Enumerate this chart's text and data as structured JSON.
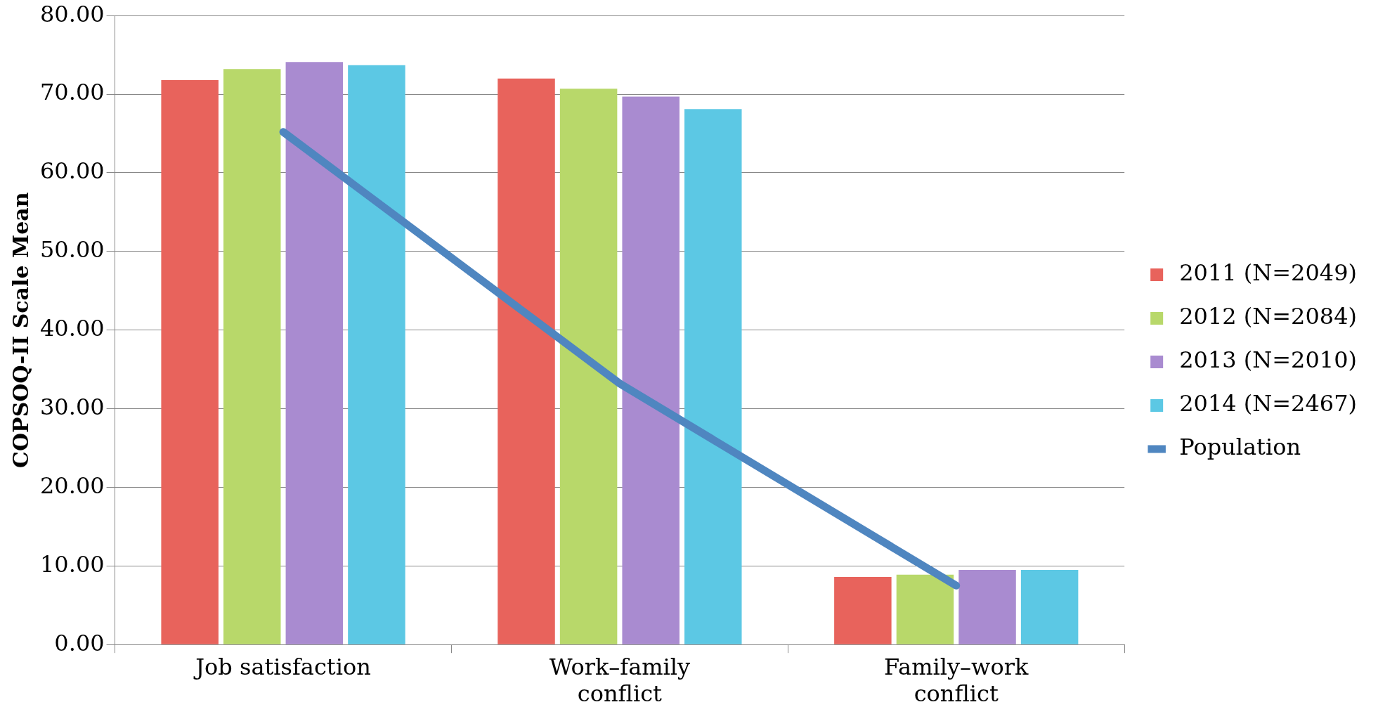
{
  "chart_data": {
    "type": "bar",
    "ylabel": "COPSOQ-II Scale Mean",
    "categories": [
      "Job satisfaction",
      "Work–family conflict",
      "Family–work conflict"
    ],
    "series": [
      {
        "name": "2011 (N=2049)",
        "color": "#e8635c",
        "values": [
          71.8,
          72.0,
          8.6
        ]
      },
      {
        "name": "2012 (N=2084)",
        "color": "#b8d86a",
        "values": [
          73.2,
          70.7,
          8.9
        ]
      },
      {
        "name": "2013 (N=2010)",
        "color": "#a98bd0",
        "values": [
          74.1,
          69.7,
          9.5
        ]
      },
      {
        "name": "2014 (N=2467)",
        "color": "#5cc8e4",
        "values": [
          73.7,
          68.1,
          9.5
        ]
      },
      {
        "name": "Population",
        "type": "line",
        "color": "#4f86c0",
        "values": [
          65.2,
          33.2,
          7.5
        ]
      }
    ],
    "ylim": [
      0,
      80
    ],
    "yticks": [
      {
        "value": 0,
        "label": "0.00"
      },
      {
        "value": 10,
        "label": "10.00"
      },
      {
        "value": 20,
        "label": "20.00"
      },
      {
        "value": 30,
        "label": "30.00"
      },
      {
        "value": 40,
        "label": "40.00"
      },
      {
        "value": 50,
        "label": "50.00"
      },
      {
        "value": 60,
        "label": "60.00"
      },
      {
        "value": 70,
        "label": "70.00"
      },
      {
        "value": 80,
        "label": "80.00"
      }
    ],
    "grid": "y",
    "legend": "right",
    "marker": "none",
    "line_style": "solid"
  }
}
